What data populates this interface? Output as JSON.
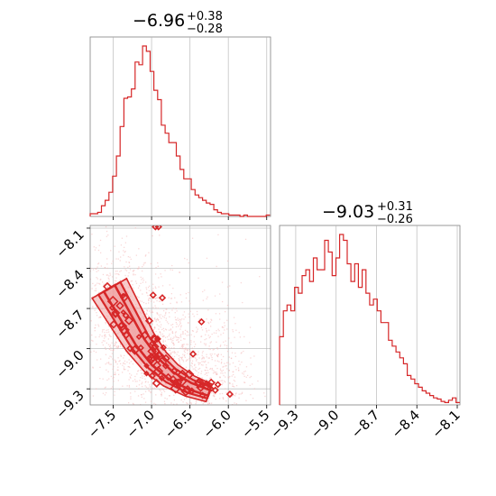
{
  "colors": {
    "series": "#d62728",
    "contour_fill": "#f0a0a0",
    "points": "#f4b8b8"
  },
  "chart_data": [
    {
      "type": "histogram",
      "panel": "marginal-x",
      "title": {
        "median": "−6.96",
        "upper": "+0.38",
        "lower": "−0.28"
      },
      "xlim": [
        -7.8,
        -5.45
      ],
      "x_ticks": [
        -7.5,
        -7.0,
        -6.5,
        -6.0,
        -5.5
      ],
      "bin_edges_start": -7.8,
      "bin_width": 0.0488,
      "counts": [
        2,
        2,
        3,
        8,
        12,
        18,
        30,
        45,
        67,
        88,
        89,
        95,
        115,
        113,
        127,
        123,
        108,
        94,
        87,
        68,
        62,
        55,
        55,
        45,
        35,
        28,
        28,
        20,
        16,
        14,
        12,
        10,
        9,
        5,
        3,
        2,
        2,
        1,
        1,
        1,
        0,
        1,
        0,
        0,
        0,
        0,
        0,
        1
      ]
    },
    {
      "type": "histogram",
      "panel": "marginal-y",
      "title": {
        "median": "−9.03",
        "upper": "+0.31",
        "lower": "−0.26"
      },
      "xlim": [
        -9.42,
        -8.08
      ],
      "x_ticks": [
        -9.3,
        -9.0,
        -8.7,
        -8.4,
        -8.1
      ],
      "bin_edges_start": -9.42,
      "bin_width": 0.0279,
      "counts": [
        58,
        80,
        85,
        80,
        100,
        95,
        110,
        115,
        105,
        125,
        115,
        115,
        140,
        130,
        110,
        125,
        145,
        140,
        120,
        105,
        120,
        100,
        115,
        95,
        85,
        90,
        80,
        70,
        70,
        55,
        50,
        45,
        40,
        35,
        25,
        22,
        18,
        15,
        12,
        10,
        8,
        6,
        5,
        3,
        2,
        4,
        6,
        2
      ]
    },
    {
      "type": "scatter",
      "panel": "joint",
      "xlim": [
        -7.8,
        -5.45
      ],
      "ylim": [
        -9.42,
        -8.08
      ],
      "x_ticks": [
        -7.5,
        -7.0,
        -6.5,
        -6.0,
        -5.5
      ],
      "y_ticks": [
        -8.1,
        -8.4,
        -8.7,
        -9.0,
        -9.3
      ],
      "ridge": [
        {
          "x": -7.55,
          "y": -8.55
        },
        {
          "x": -7.35,
          "y": -8.75
        },
        {
          "x": -7.15,
          "y": -8.95
        },
        {
          "x": -6.95,
          "y": -9.1
        },
        {
          "x": -6.75,
          "y": -9.2
        },
        {
          "x": -6.5,
          "y": -9.28
        },
        {
          "x": -6.25,
          "y": -9.33
        }
      ],
      "outlier_marks": [
        {
          "x": -6.91,
          "y": -8.09
        },
        {
          "x": -6.95,
          "y": -8.09
        },
        {
          "x": -5.98,
          "y": -9.34
        },
        {
          "x": -6.17,
          "y": -9.31
        },
        {
          "x": -6.35,
          "y": -8.8
        },
        {
          "x": -6.46,
          "y": -9.04
        },
        {
          "x": -6.86,
          "y": -8.62
        },
        {
          "x": -6.98,
          "y": -8.6
        }
      ]
    }
  ]
}
